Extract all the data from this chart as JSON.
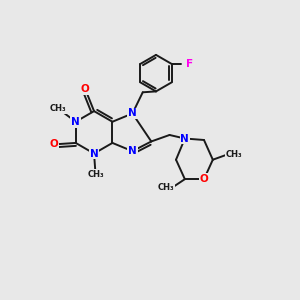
{
  "bg_color": "#e8e8e8",
  "bond_color": "#1a1a1a",
  "N_color": "#0000ff",
  "O_color": "#ff0000",
  "F_color": "#ff00ee",
  "font_size": 7.5,
  "line_width": 1.4,
  "xlim": [
    0,
    10
  ],
  "ylim": [
    0,
    10
  ]
}
